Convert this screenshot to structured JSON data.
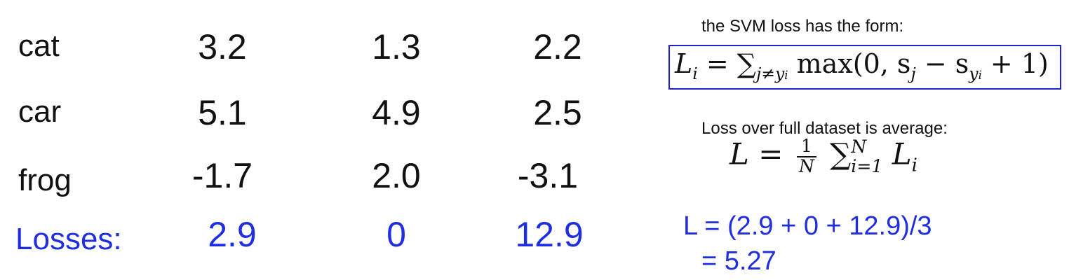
{
  "rows": [
    {
      "label": "cat",
      "scores": [
        "3.2",
        "1.3",
        "2.2"
      ]
    },
    {
      "label": "car",
      "scores": [
        "5.1",
        "4.9",
        "2.5"
      ]
    },
    {
      "label": "frog",
      "scores": [
        "-1.7",
        "2.0",
        "-3.1"
      ]
    }
  ],
  "losses": {
    "label": "Losses:",
    "values": [
      "2.9",
      "0",
      "12.9"
    ]
  },
  "notes": {
    "svm_intro": "the SVM loss has the form:",
    "avg_intro": "Loss over full dataset is average:"
  },
  "svm_formula": {
    "lhs": "L",
    "lhs_sub": "i",
    "equals": "=",
    "sum": "∑",
    "sum_sub": "j≠y",
    "sum_sub_sub": "i",
    "max": "max(0, s",
    "s_sub": "j",
    "minus": " − s",
    "sy_sub": "y",
    "sy_sub_sub": "i",
    "tail": " + 1)"
  },
  "avg_formula": {
    "lhs": "L",
    "equals": "=",
    "frac_num": "1",
    "frac_den": "N",
    "sum": "∑",
    "sum_sup": "N",
    "sum_sub": "i=1",
    "term": "L",
    "term_sub": "i"
  },
  "calculation": {
    "line1": "L = (2.9 + 0 + 12.9)/3",
    "line2": "= 5.27"
  },
  "colors": {
    "loss_blue": "#1f2ee0",
    "box_blue": "#2222cc",
    "text": "#111111"
  }
}
